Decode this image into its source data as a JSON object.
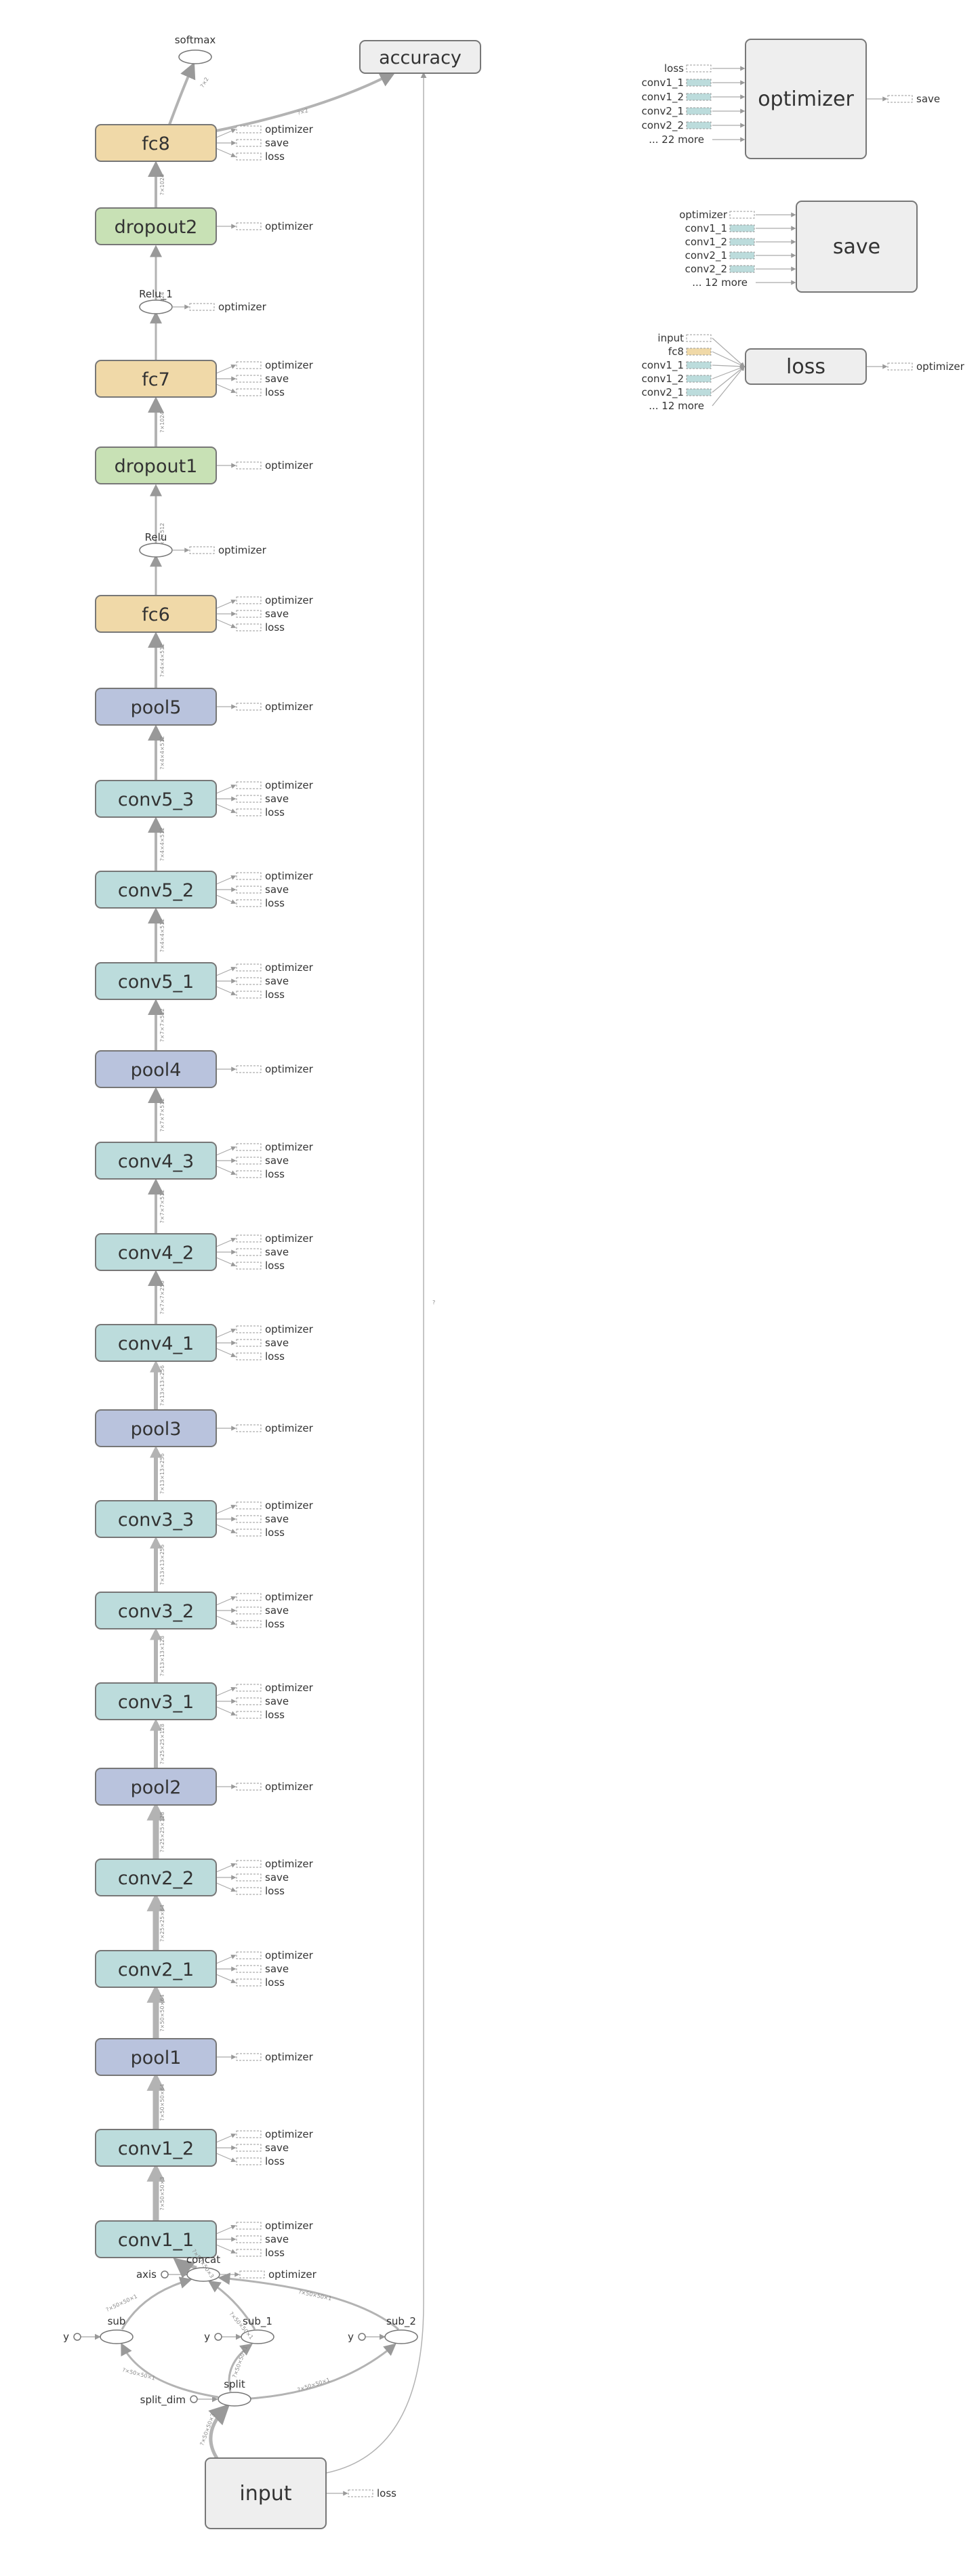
{
  "colors": {
    "fc": "#f0d9a8",
    "dropout": "#c8e1b5",
    "pool": "#b9c3dd",
    "conv": "#bcdcdc",
    "meta": "#eeeeee",
    "edge": "#b3b3b3",
    "stroke": "#777777"
  },
  "column_nodes": [
    {
      "id": "fc8",
      "label": "fc8",
      "kind": "fc",
      "outs": [
        "optimizer",
        "save",
        "loss"
      ],
      "shape": "1×1024"
    },
    {
      "id": "dropout2",
      "label": "dropout2",
      "kind": "dropout",
      "outs": [
        "optimizer"
      ],
      "shape": "?×1024"
    },
    {
      "id": "fc7",
      "label": "fc7",
      "kind": "fc",
      "outs": [
        "optimizer",
        "save",
        "loss"
      ],
      "shape": "?×1024"
    },
    {
      "id": "dropout1",
      "label": "dropout1",
      "kind": "dropout",
      "outs": [
        "optimizer"
      ],
      "shape": "?×1024"
    },
    {
      "id": "fc6",
      "label": "fc6",
      "kind": "fc",
      "outs": [
        "optimizer",
        "save",
        "loss"
      ],
      "shape": "?×2×2×512"
    },
    {
      "id": "pool5",
      "label": "pool5",
      "kind": "pool",
      "outs": [
        "optimizer"
      ],
      "shape": "?×4×4×512"
    },
    {
      "id": "conv5_3",
      "label": "conv5_3",
      "kind": "conv",
      "outs": [
        "optimizer",
        "save",
        "loss"
      ],
      "shape": "?×4×4×512"
    },
    {
      "id": "conv5_2",
      "label": "conv5_2",
      "kind": "conv",
      "outs": [
        "optimizer",
        "save",
        "loss"
      ],
      "shape": "?×4×4×512"
    },
    {
      "id": "conv5_1",
      "label": "conv5_1",
      "kind": "conv",
      "outs": [
        "optimizer",
        "save",
        "loss"
      ],
      "shape": "?×4×4×512"
    },
    {
      "id": "pool4",
      "label": "pool4",
      "kind": "pool",
      "outs": [
        "optimizer"
      ],
      "shape": "?×7×7×512"
    },
    {
      "id": "conv4_3",
      "label": "conv4_3",
      "kind": "conv",
      "outs": [
        "optimizer",
        "save",
        "loss"
      ],
      "shape": "?×7×7×512"
    },
    {
      "id": "conv4_2",
      "label": "conv4_2",
      "kind": "conv",
      "outs": [
        "optimizer",
        "save",
        "loss"
      ],
      "shape": "?×7×7×512"
    },
    {
      "id": "conv4_1",
      "label": "conv4_1",
      "kind": "conv",
      "outs": [
        "optimizer",
        "save",
        "loss"
      ],
      "shape": "?×7×7×256"
    },
    {
      "id": "pool3",
      "label": "pool3",
      "kind": "pool",
      "outs": [
        "optimizer"
      ],
      "shape": "?×13×13×256"
    },
    {
      "id": "conv3_3",
      "label": "conv3_3",
      "kind": "conv",
      "outs": [
        "optimizer",
        "save",
        "loss"
      ],
      "shape": "?×13×13×256"
    },
    {
      "id": "conv3_2",
      "label": "conv3_2",
      "kind": "conv",
      "outs": [
        "optimizer",
        "save",
        "loss"
      ],
      "shape": "?×13×13×256"
    },
    {
      "id": "conv3_1",
      "label": "conv3_1",
      "kind": "conv",
      "outs": [
        "optimizer",
        "save",
        "loss"
      ],
      "shape": "?×13×13×128"
    },
    {
      "id": "pool2",
      "label": "pool2",
      "kind": "pool",
      "outs": [
        "optimizer"
      ],
      "shape": "?×25×25×128"
    },
    {
      "id": "conv2_2",
      "label": "conv2_2",
      "kind": "conv",
      "outs": [
        "optimizer",
        "save",
        "loss"
      ],
      "shape": "?×25×25×128"
    },
    {
      "id": "conv2_1",
      "label": "conv2_1",
      "kind": "conv",
      "outs": [
        "optimizer",
        "save",
        "loss"
      ],
      "shape": "?×25×25×64"
    },
    {
      "id": "pool1",
      "label": "pool1",
      "kind": "pool",
      "outs": [
        "optimizer"
      ],
      "shape": "?×50×50×64"
    },
    {
      "id": "conv1_2",
      "label": "conv1_2",
      "kind": "conv",
      "outs": [
        "optimizer",
        "save",
        "loss"
      ],
      "shape": "?×50×50×64"
    },
    {
      "id": "conv1_1",
      "label": "conv1_1",
      "kind": "conv",
      "outs": [
        "optimizer",
        "save",
        "loss"
      ],
      "shape": "?×50×50×3"
    }
  ],
  "relu_nodes": [
    {
      "id": "relu_1",
      "label": "Relu_1",
      "after": "dropout2",
      "out": "optimizer"
    },
    {
      "id": "relu",
      "label": "Relu",
      "after": "dropout1",
      "out": "optimizer"
    }
  ],
  "top_nodes": {
    "softmax": "softmax",
    "accuracy": "accuracy",
    "fc8_softmax_shape": "?×2",
    "fc8_accuracy_shape": "?×2"
  },
  "bottom_nodes": {
    "concat": "concat",
    "concat_out": "optimizer",
    "axis": "axis",
    "sub": "sub",
    "sub_1": "sub_1",
    "sub_2": "sub_2",
    "y": "y",
    "split": "split",
    "split_dim": "split_dim",
    "input": "input",
    "input_out": "loss",
    "edge_labels": {
      "concat_conv": "?×50×50×3",
      "sub_concat": "?×50×50×1",
      "sub1_concat": "?×50×50×1",
      "sub2_concat": "?×50×50×1",
      "split_sub": "?×50×50×1",
      "split_sub1": "?×50×50×1",
      "split_sub2": "?×50×50×1",
      "input_split": "?×50×50×3",
      "input_accuracy": "?"
    }
  },
  "side_nodes": [
    {
      "id": "optimizer",
      "label": "optimizer",
      "inputs": [
        "loss",
        "conv1_1",
        "conv1_2",
        "conv2_1",
        "conv2_2",
        "... 22 more"
      ],
      "out": "save"
    },
    {
      "id": "save",
      "label": "save",
      "inputs": [
        "optimizer",
        "conv1_1",
        "conv1_2",
        "conv2_1",
        "conv2_2",
        "... 12 more"
      ],
      "out": ""
    },
    {
      "id": "loss",
      "label": "loss",
      "inputs": [
        "input",
        "fc8",
        "conv1_1",
        "conv1_2",
        "conv2_1",
        "... 12 more"
      ],
      "out": "optimizer"
    }
  ]
}
